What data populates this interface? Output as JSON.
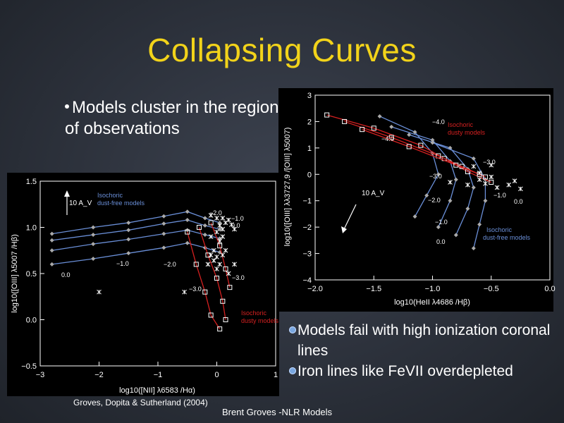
{
  "slide": {
    "title": "Collapsing Curves",
    "bullet_main": "Models cluster in the region of observations",
    "bullets_secondary": [
      "Models fail with high ionization coronal lines",
      "Iron lines like FeVII overdepleted"
    ],
    "credit": "Groves, Dopita & Sutherland (2004)",
    "footer": "Brent Groves -NLR Models"
  },
  "chart_data": [
    {
      "type": "line",
      "xlabel": "log10([NII] λ6583 /Hα)",
      "ylabel": "log10([OIII] λ5007 /Hβ)",
      "xlim": [
        -3,
        1
      ],
      "ylim": [
        -0.5,
        1.5
      ],
      "xticks": [
        "−3",
        "−2",
        "−1",
        "0",
        "1"
      ],
      "yticks": [
        "−0.5",
        "0.0",
        "0.5",
        "1.0",
        "1.5"
      ],
      "annotations": [
        "10 A_V",
        "Isochoric dust-free models",
        "Isochoric dusty models",
        "−2.0",
        "−1.0",
        "0.0",
        "−3.0",
        "−2.0",
        "−3.0",
        "−1.0",
        "0.0"
      ],
      "series": [
        {
          "name": "Isochoric dust-free models",
          "color": "#6a8fd8",
          "lines": [
            [
              [
                -2.8,
                0.93
              ],
              [
                -2.1,
                1.0
              ],
              [
                -1.5,
                1.05
              ],
              [
                -0.9,
                1.12
              ],
              [
                -0.5,
                1.17
              ],
              [
                -0.2,
                1.1
              ],
              [
                0.05,
                1.05
              ]
            ],
            [
              [
                -2.8,
                0.86
              ],
              [
                -2.1,
                0.92
              ],
              [
                -1.5,
                0.97
              ],
              [
                -0.9,
                1.04
              ],
              [
                -0.5,
                1.08
              ],
              [
                -0.2,
                1.02
              ],
              [
                0.05,
                0.98
              ]
            ],
            [
              [
                -2.8,
                0.75
              ],
              [
                -2.1,
                0.82
              ],
              [
                -1.5,
                0.87
              ],
              [
                -0.9,
                0.93
              ],
              [
                -0.5,
                0.97
              ],
              [
                -0.2,
                0.92
              ],
              [
                0.05,
                0.88
              ]
            ],
            [
              [
                -2.8,
                0.6
              ],
              [
                -2.1,
                0.66
              ],
              [
                -1.5,
                0.72
              ],
              [
                -0.9,
                0.78
              ],
              [
                -0.5,
                0.83
              ],
              [
                -0.2,
                0.78
              ],
              [
                0.05,
                0.73
              ]
            ]
          ]
        },
        {
          "name": "Isochoric dusty models",
          "color": "#d42020",
          "lines": [
            [
              [
                -0.5,
                0.95
              ],
              [
                -0.35,
                0.6
              ],
              [
                -0.2,
                0.3
              ],
              [
                -0.1,
                0.05
              ],
              [
                0.05,
                -0.1
              ]
            ],
            [
              [
                -0.3,
                1.0
              ],
              [
                -0.15,
                0.7
              ],
              [
                0.0,
                0.45
              ],
              [
                0.1,
                0.2
              ],
              [
                0.15,
                0.0
              ]
            ],
            [
              [
                -0.1,
                1.05
              ],
              [
                0.05,
                0.8
              ],
              [
                0.15,
                0.55
              ],
              [
                0.22,
                0.35
              ]
            ]
          ]
        }
      ],
      "observations": [
        [
          -0.1,
          1.13
        ],
        [
          0.0,
          1.1
        ],
        [
          0.1,
          1.1
        ],
        [
          0.2,
          1.08
        ],
        [
          0.15,
          1.05
        ],
        [
          0.05,
          1.02
        ],
        [
          0.25,
          1.03
        ],
        [
          0.0,
          0.95
        ],
        [
          -0.1,
          0.9
        ],
        [
          0.1,
          0.9
        ],
        [
          0.05,
          0.85
        ],
        [
          -0.05,
          0.75
        ],
        [
          0.15,
          0.75
        ],
        [
          -0.1,
          0.7
        ],
        [
          0.0,
          0.68
        ],
        [
          0.1,
          0.7
        ],
        [
          -0.15,
          0.6
        ],
        [
          0.3,
          0.6
        ],
        [
          0.2,
          0.5
        ],
        [
          -0.55,
          0.3
        ],
        [
          0.0,
          0.55
        ],
        [
          0.05,
          0.6
        ],
        [
          -0.05,
          0.64
        ],
        [
          -2.0,
          0.3
        ],
        [
          0.1,
          0.98
        ],
        [
          0.3,
          0.98
        ]
      ]
    },
    {
      "type": "line",
      "xlabel": "log10(HeII λ4686 /Hβ)",
      "ylabel": "log10([OIII] λλ3727,9 /[OIII] λ5007)",
      "xlim": [
        -2.0,
        0.0
      ],
      "ylim": [
        -4,
        3
      ],
      "xticks": [
        "−2.0",
        "−1.5",
        "−1.0",
        "−0.5",
        "0.0"
      ],
      "yticks": [
        "−4",
        "−3",
        "−2",
        "−1",
        "0",
        "1",
        "2",
        "3"
      ],
      "annotations": [
        "10 A_V",
        "Isochoric dusty models",
        "Isochoric dust-free models",
        "−4.0",
        "−4.0",
        "−3.0",
        "−3.0",
        "−2.0",
        "−1.0",
        "0.0",
        "−1.0",
        "0.0"
      ],
      "series": [
        {
          "name": "Isochoric dust-free models",
          "color": "#6a8fd8",
          "lines": [
            [
              [
                -1.45,
                2.2
              ],
              [
                -1.15,
                1.6
              ],
              [
                -1.0,
                0.8
              ],
              [
                -0.95,
                0.0
              ],
              [
                -1.05,
                -0.8
              ],
              [
                -1.15,
                -1.6
              ]
            ],
            [
              [
                -1.35,
                1.8
              ],
              [
                -1.0,
                1.3
              ],
              [
                -0.85,
                0.5
              ],
              [
                -0.8,
                -0.2
              ],
              [
                -0.85,
                -1.0
              ],
              [
                -0.95,
                -2.0
              ]
            ],
            [
              [
                -1.2,
                1.5
              ],
              [
                -0.85,
                1.0
              ],
              [
                -0.7,
                0.2
              ],
              [
                -0.65,
                -0.5
              ],
              [
                -0.7,
                -1.3
              ],
              [
                -0.8,
                -2.3
              ]
            ],
            [
              [
                -1.0,
                1.2
              ],
              [
                -0.65,
                0.6
              ],
              [
                -0.55,
                -0.2
              ],
              [
                -0.55,
                -1.0
              ],
              [
                -0.6,
                -1.9
              ],
              [
                -0.65,
                -2.8
              ]
            ]
          ]
        },
        {
          "name": "Isochoric dusty models",
          "color": "#d42020",
          "lines": [
            [
              [
                -1.9,
                2.25
              ],
              [
                -1.5,
                1.75
              ],
              [
                -1.1,
                1.1
              ],
              [
                -0.9,
                0.6
              ],
              [
                -0.7,
                0.1
              ],
              [
                -0.5,
                -0.3
              ]
            ],
            [
              [
                -1.75,
                2.0
              ],
              [
                -1.35,
                1.4
              ],
              [
                -0.95,
                0.7
              ],
              [
                -0.75,
                0.3
              ],
              [
                -0.55,
                -0.1
              ]
            ],
            [
              [
                -1.6,
                1.7
              ],
              [
                -1.2,
                1.05
              ],
              [
                -0.8,
                0.35
              ],
              [
                -0.6,
                0.0
              ]
            ]
          ]
        }
      ],
      "observations": [
        [
          -0.85,
          -0.3
        ],
        [
          -0.7,
          -0.4
        ],
        [
          -0.6,
          -0.2
        ],
        [
          -0.55,
          -0.35
        ],
        [
          -0.45,
          -0.5
        ],
        [
          -0.5,
          -0.1
        ],
        [
          -0.35,
          -0.4
        ],
        [
          -0.3,
          -0.25
        ],
        [
          -0.25,
          -0.55
        ],
        [
          -0.65,
          0.3
        ],
        [
          -0.6,
          0.05
        ],
        [
          -0.5,
          0.35
        ]
      ]
    }
  ]
}
